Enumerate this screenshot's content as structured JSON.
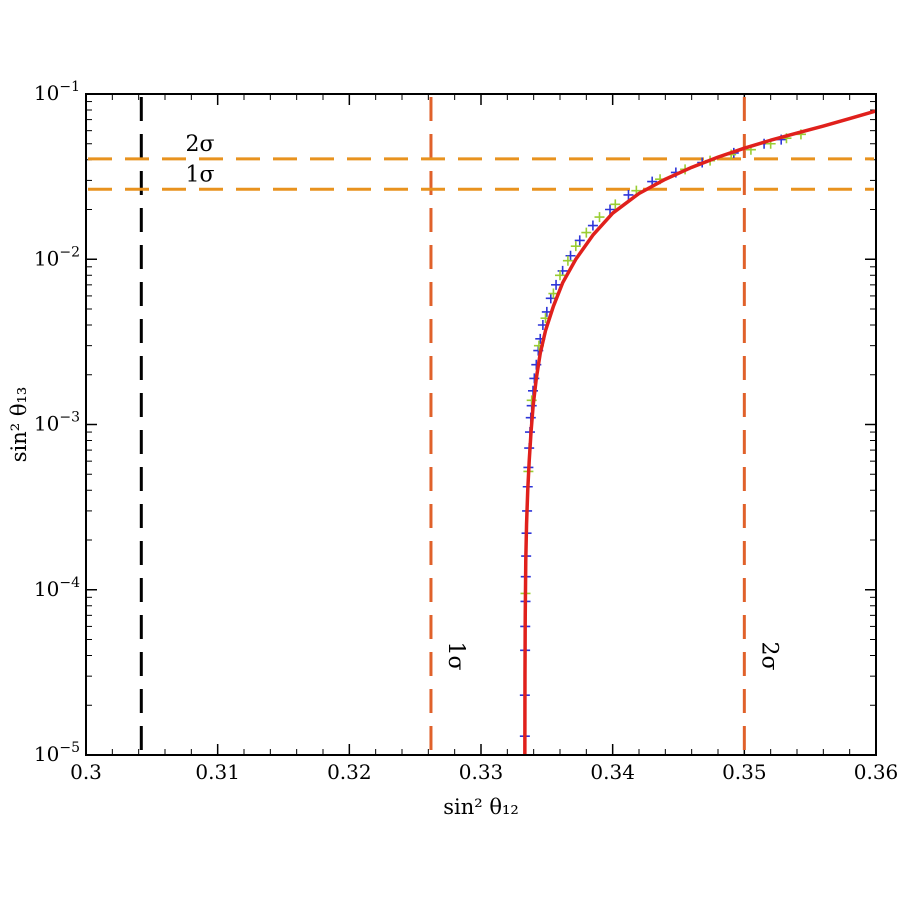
{
  "chart_data": {
    "type": "scatter",
    "xlabel": "sin² θ₁₂",
    "ylabel": "sin² θ₁₃",
    "xlim": [
      0.3,
      0.36
    ],
    "ylim": [
      1e-05,
      0.1
    ],
    "yscale": "log",
    "grid": false,
    "x_ticks": [
      "0.3",
      "0.31",
      "0.32",
      "0.33",
      "0.34",
      "0.35",
      "0.36"
    ],
    "y_ticks": [
      {
        "value": 1e-05,
        "base": "10",
        "exp": "−5"
      },
      {
        "value": 0.0001,
        "base": "10",
        "exp": "−4"
      },
      {
        "value": 0.001,
        "base": "10",
        "exp": "−3"
      },
      {
        "value": 0.01,
        "base": "10",
        "exp": "−2"
      },
      {
        "value": 0.1,
        "base": "10",
        "exp": "−1"
      }
    ],
    "reference_lines": [
      {
        "orientation": "vertical",
        "x": 0.3042,
        "color": "#000000",
        "label": ""
      },
      {
        "orientation": "vertical",
        "x": 0.3262,
        "color": "#E0612A",
        "label": "1σ"
      },
      {
        "orientation": "vertical",
        "x": 0.35,
        "color": "#E0612A",
        "label": "2σ"
      },
      {
        "orientation": "horizontal",
        "y": 0.0265,
        "color": "#E8921E",
        "label": "1σ"
      },
      {
        "orientation": "horizontal",
        "y": 0.0405,
        "color": "#E8921E",
        "label": "2σ"
      }
    ],
    "series": [
      {
        "color": "#2E35D8",
        "marker": "+",
        "points": [
          [
            0.33333,
            1.3e-05
          ],
          [
            0.33333,
            2.3e-05
          ],
          [
            0.33335,
            4.3e-05
          ],
          [
            0.33336,
            6e-05
          ],
          [
            0.33338,
            8.5e-05
          ],
          [
            0.3334,
            0.00012
          ],
          [
            0.33343,
            0.00016
          ],
          [
            0.33346,
            0.00022
          ],
          [
            0.3335,
            0.0003
          ],
          [
            0.33355,
            0.00042
          ],
          [
            0.3336,
            0.00055
          ],
          [
            0.33366,
            0.00072
          ],
          [
            0.33372,
            0.0009
          ],
          [
            0.33378,
            0.0011
          ],
          [
            0.33385,
            0.0013
          ],
          [
            0.33395,
            0.0016
          ],
          [
            0.33405,
            0.0019
          ],
          [
            0.3342,
            0.0023
          ],
          [
            0.33435,
            0.0028
          ],
          [
            0.3345,
            0.0033
          ],
          [
            0.3347,
            0.004
          ],
          [
            0.335,
            0.0048
          ],
          [
            0.3353,
            0.0058
          ],
          [
            0.3357,
            0.007
          ],
          [
            0.3362,
            0.0085
          ],
          [
            0.3368,
            0.0105
          ],
          [
            0.3375,
            0.013
          ],
          [
            0.3385,
            0.016
          ],
          [
            0.3398,
            0.02
          ],
          [
            0.3412,
            0.0245
          ],
          [
            0.343,
            0.0295
          ],
          [
            0.3448,
            0.0335
          ],
          [
            0.3468,
            0.0385
          ],
          [
            0.3492,
            0.044
          ],
          [
            0.3515,
            0.05
          ],
          [
            0.3528,
            0.053
          ]
        ]
      },
      {
        "color": "#9ACD32",
        "marker": "+",
        "points": [
          [
            0.33338,
            9.5e-05
          ],
          [
            0.3336,
            0.00052
          ],
          [
            0.33385,
            0.0014
          ],
          [
            0.3344,
            0.003
          ],
          [
            0.3349,
            0.0044
          ],
          [
            0.3355,
            0.0062
          ],
          [
            0.336,
            0.008
          ],
          [
            0.3366,
            0.0098
          ],
          [
            0.3372,
            0.012
          ],
          [
            0.338,
            0.0145
          ],
          [
            0.339,
            0.018
          ],
          [
            0.3402,
            0.0215
          ],
          [
            0.3418,
            0.026
          ],
          [
            0.3436,
            0.0305
          ],
          [
            0.3455,
            0.035
          ],
          [
            0.3474,
            0.0395
          ],
          [
            0.349,
            0.043
          ],
          [
            0.3505,
            0.046
          ],
          [
            0.352,
            0.05
          ],
          [
            0.3532,
            0.054
          ],
          [
            0.3543,
            0.057
          ]
        ]
      }
    ],
    "curve": {
      "color": "#E0201C",
      "points": [
        [
          0.33333,
          1e-05
        ],
        [
          0.33334,
          3e-05
        ],
        [
          0.33336,
          7e-05
        ],
        [
          0.3334,
          0.00015
        ],
        [
          0.33346,
          0.00025
        ],
        [
          0.33355,
          0.0004
        ],
        [
          0.33366,
          0.0006
        ],
        [
          0.3338,
          0.0009
        ],
        [
          0.33396,
          0.0013
        ],
        [
          0.3342,
          0.0019
        ],
        [
          0.3345,
          0.0027
        ],
        [
          0.3349,
          0.0037
        ],
        [
          0.3355,
          0.0052
        ],
        [
          0.3362,
          0.0072
        ],
        [
          0.3372,
          0.01
        ],
        [
          0.3385,
          0.014
        ],
        [
          0.34,
          0.019
        ],
        [
          0.342,
          0.025
        ],
        [
          0.344,
          0.0305
        ],
        [
          0.346,
          0.036
        ],
        [
          0.348,
          0.0415
        ],
        [
          0.35,
          0.047
        ],
        [
          0.352,
          0.0525
        ],
        [
          0.354,
          0.058
        ],
        [
          0.356,
          0.064
        ],
        [
          0.358,
          0.071
        ],
        [
          0.36,
          0.079
        ]
      ]
    }
  }
}
